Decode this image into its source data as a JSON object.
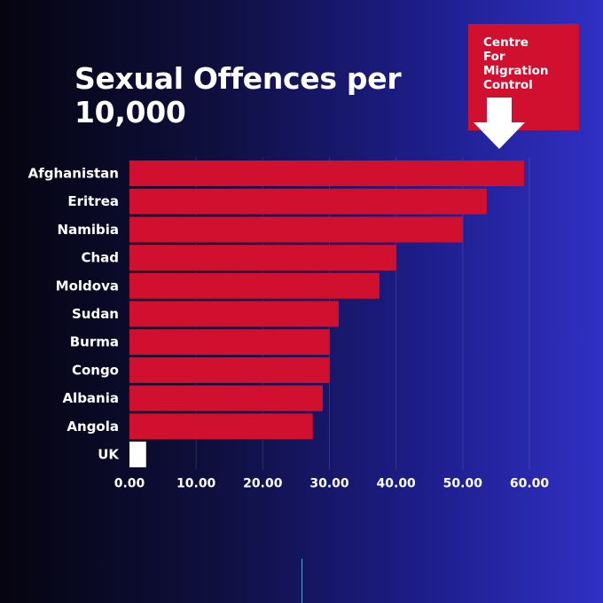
{
  "badge": {
    "lines": [
      "Centre",
      "For",
      "Migration",
      "Control"
    ],
    "color": "#d0102e",
    "icon": "down-arrow-icon"
  },
  "chart_data": {
    "type": "bar",
    "orientation": "horizontal",
    "title": "Sexual Offences per 10,000",
    "xlabel": "",
    "ylabel": "",
    "categories": [
      "Afghanistan",
      "Eritrea",
      "Namibia",
      "Chad",
      "Moldova",
      "Sudan",
      "Burma",
      "Congo",
      "Albania",
      "Angola",
      "UK"
    ],
    "values": [
      59.2,
      53.6,
      50.0,
      40.0,
      37.5,
      31.4,
      30.0,
      30.0,
      29.0,
      27.5,
      2.5
    ],
    "bar_colors": [
      "#d0102e",
      "#d0102e",
      "#d0102e",
      "#d0102e",
      "#d0102e",
      "#d0102e",
      "#d0102e",
      "#d0102e",
      "#d0102e",
      "#d0102e",
      "#ffffff"
    ],
    "xlim": [
      0,
      60
    ],
    "x_ticks": [
      "0.00",
      "10.00",
      "20.00",
      "30.00",
      "40.00",
      "50.00",
      "60.00"
    ],
    "grid": true,
    "legend": "none"
  }
}
